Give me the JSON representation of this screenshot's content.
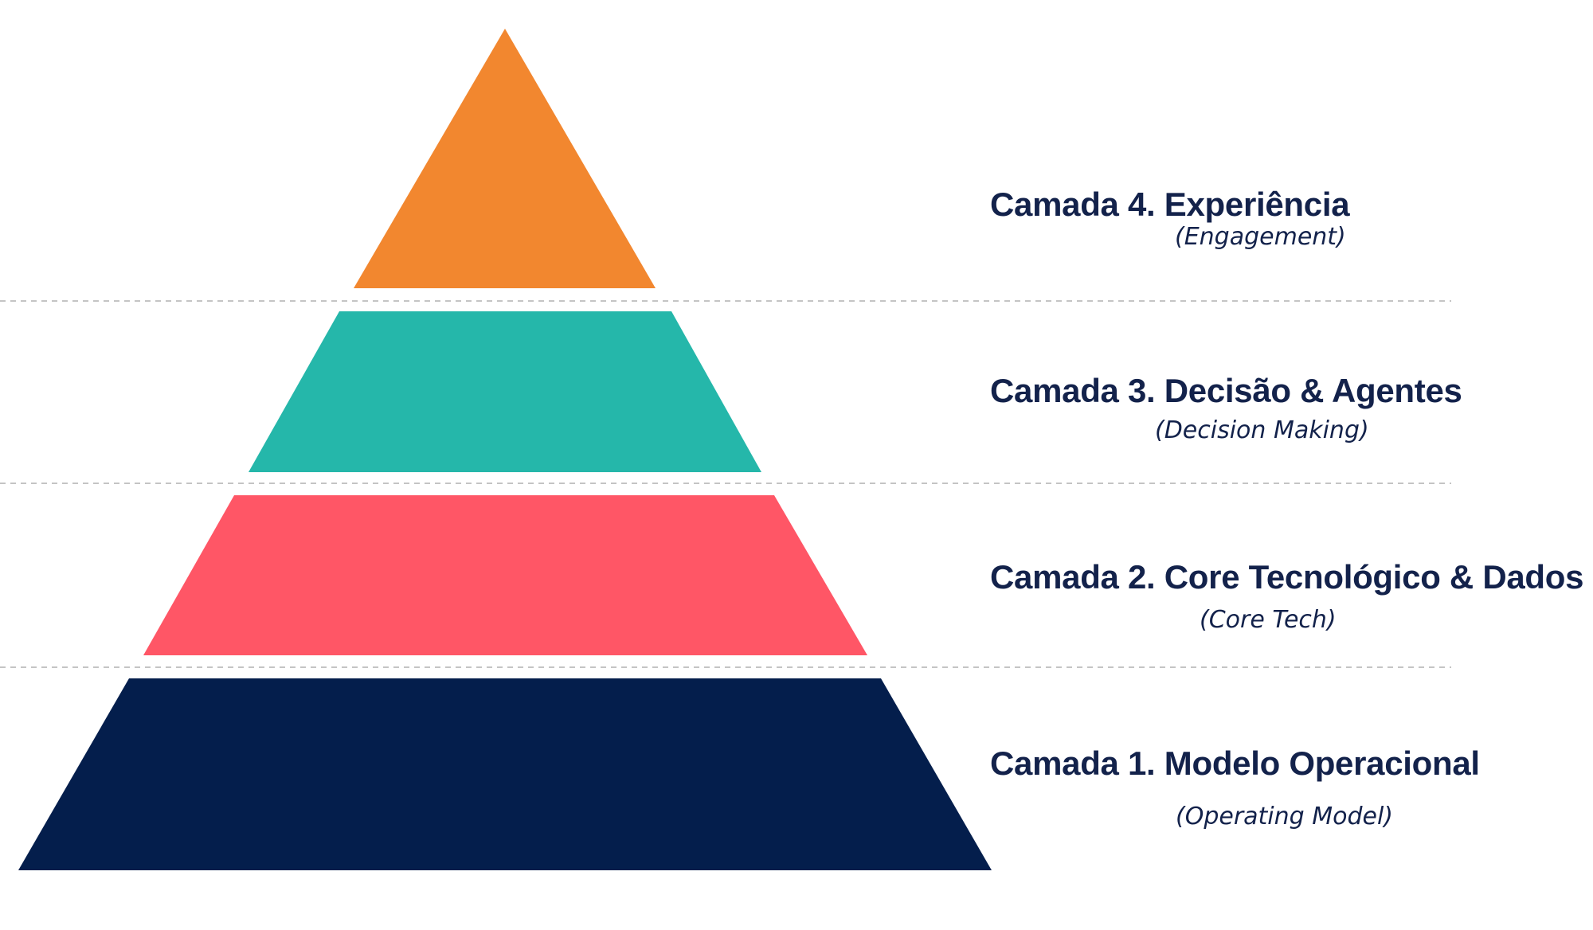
{
  "colors": {
    "text": "#13224b",
    "divider": "#c4c4c4",
    "background": "#ffffff"
  },
  "layers": [
    {
      "title": "Camada 4. Experiência",
      "subtitle": "(Engagement)",
      "color": "#f2872f"
    },
    {
      "title": "Camada 3. Decisão & Agentes",
      "subtitle": "(Decision Making)",
      "color": "#25b7aa"
    },
    {
      "title": "Camada 2. Core Tecnológico & Dados",
      "subtitle": "(Core Tech)",
      "color": "#ff5666"
    },
    {
      "title": "Camada 1. Modelo Operacional",
      "subtitle": "(Operating Model)",
      "color": "#041e4c"
    }
  ]
}
